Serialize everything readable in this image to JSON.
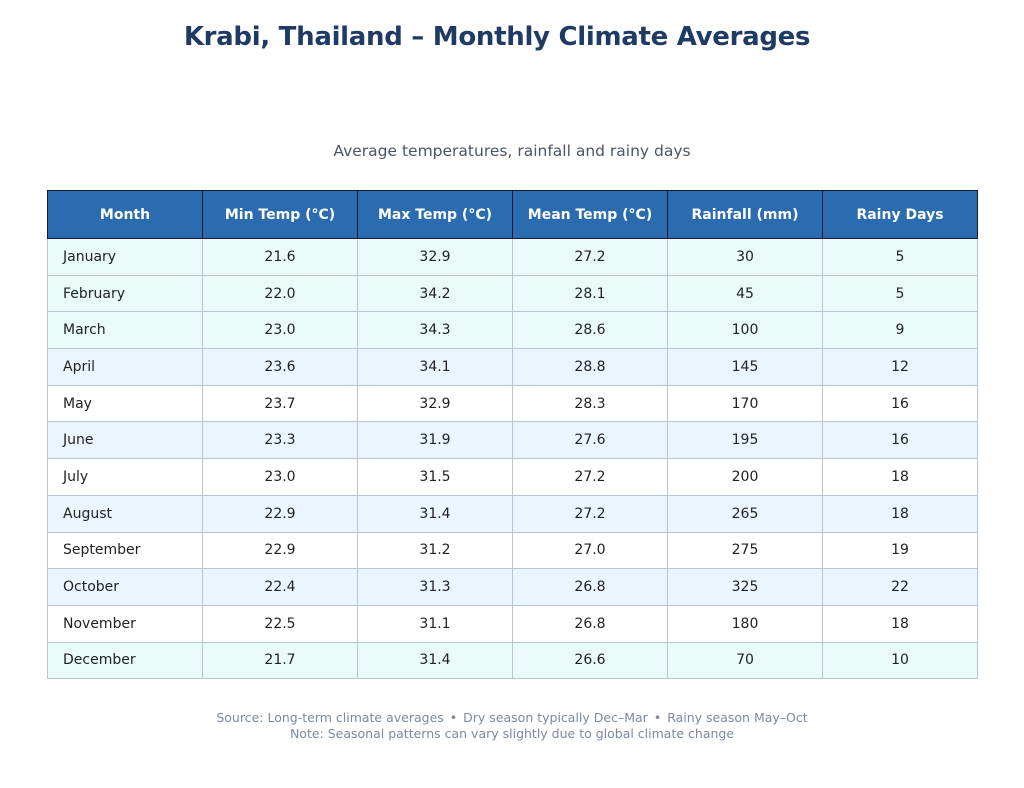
{
  "title": "Krabi, Thailand – Monthly Climate Averages",
  "subtitle": "Average temperatures, rainfall and rainy days",
  "colors": {
    "header_bg": "#2b6cb0",
    "title": "#1f3b63",
    "row_cyan": "#e8fbf8",
    "row_white": "#ffffff",
    "row_blue": "#ebf5ff"
  },
  "chart_data": {
    "type": "table",
    "columns": [
      "Month",
      "Min Temp (°C)",
      "Max Temp (°C)",
      "Mean Temp (°C)",
      "Rainfall (mm)",
      "Rainy Days"
    ],
    "rows": [
      [
        "January",
        "21.6",
        "32.9",
        "27.2",
        "30",
        "5"
      ],
      [
        "February",
        "22.0",
        "34.2",
        "28.1",
        "45",
        "5"
      ],
      [
        "March",
        "23.0",
        "34.3",
        "28.6",
        "100",
        "9"
      ],
      [
        "April",
        "23.6",
        "34.1",
        "28.8",
        "145",
        "12"
      ],
      [
        "May",
        "23.7",
        "32.9",
        "28.3",
        "170",
        "16"
      ],
      [
        "June",
        "23.3",
        "31.9",
        "27.6",
        "195",
        "16"
      ],
      [
        "July",
        "23.0",
        "31.5",
        "27.2",
        "200",
        "18"
      ],
      [
        "August",
        "22.9",
        "31.4",
        "27.2",
        "265",
        "18"
      ],
      [
        "September",
        "22.9",
        "31.2",
        "27.0",
        "275",
        "19"
      ],
      [
        "October",
        "22.4",
        "31.3",
        "26.8",
        "325",
        "22"
      ],
      [
        "November",
        "22.5",
        "31.1",
        "26.8",
        "180",
        "18"
      ],
      [
        "December",
        "21.7",
        "31.4",
        "26.6",
        "70",
        "10"
      ]
    ],
    "row_styles": [
      "cyan",
      "cyan",
      "cyan",
      "blue",
      "white",
      "blue",
      "white",
      "blue",
      "white",
      "blue",
      "white",
      "cyan"
    ]
  },
  "footer": {
    "source": "Source: Long-term climate averages",
    "dry": "Dry season typically Dec–Mar",
    "rainy": "Rainy season May–Oct",
    "separator": "•",
    "note": "Note: Seasonal patterns can vary slightly due to global climate change"
  }
}
